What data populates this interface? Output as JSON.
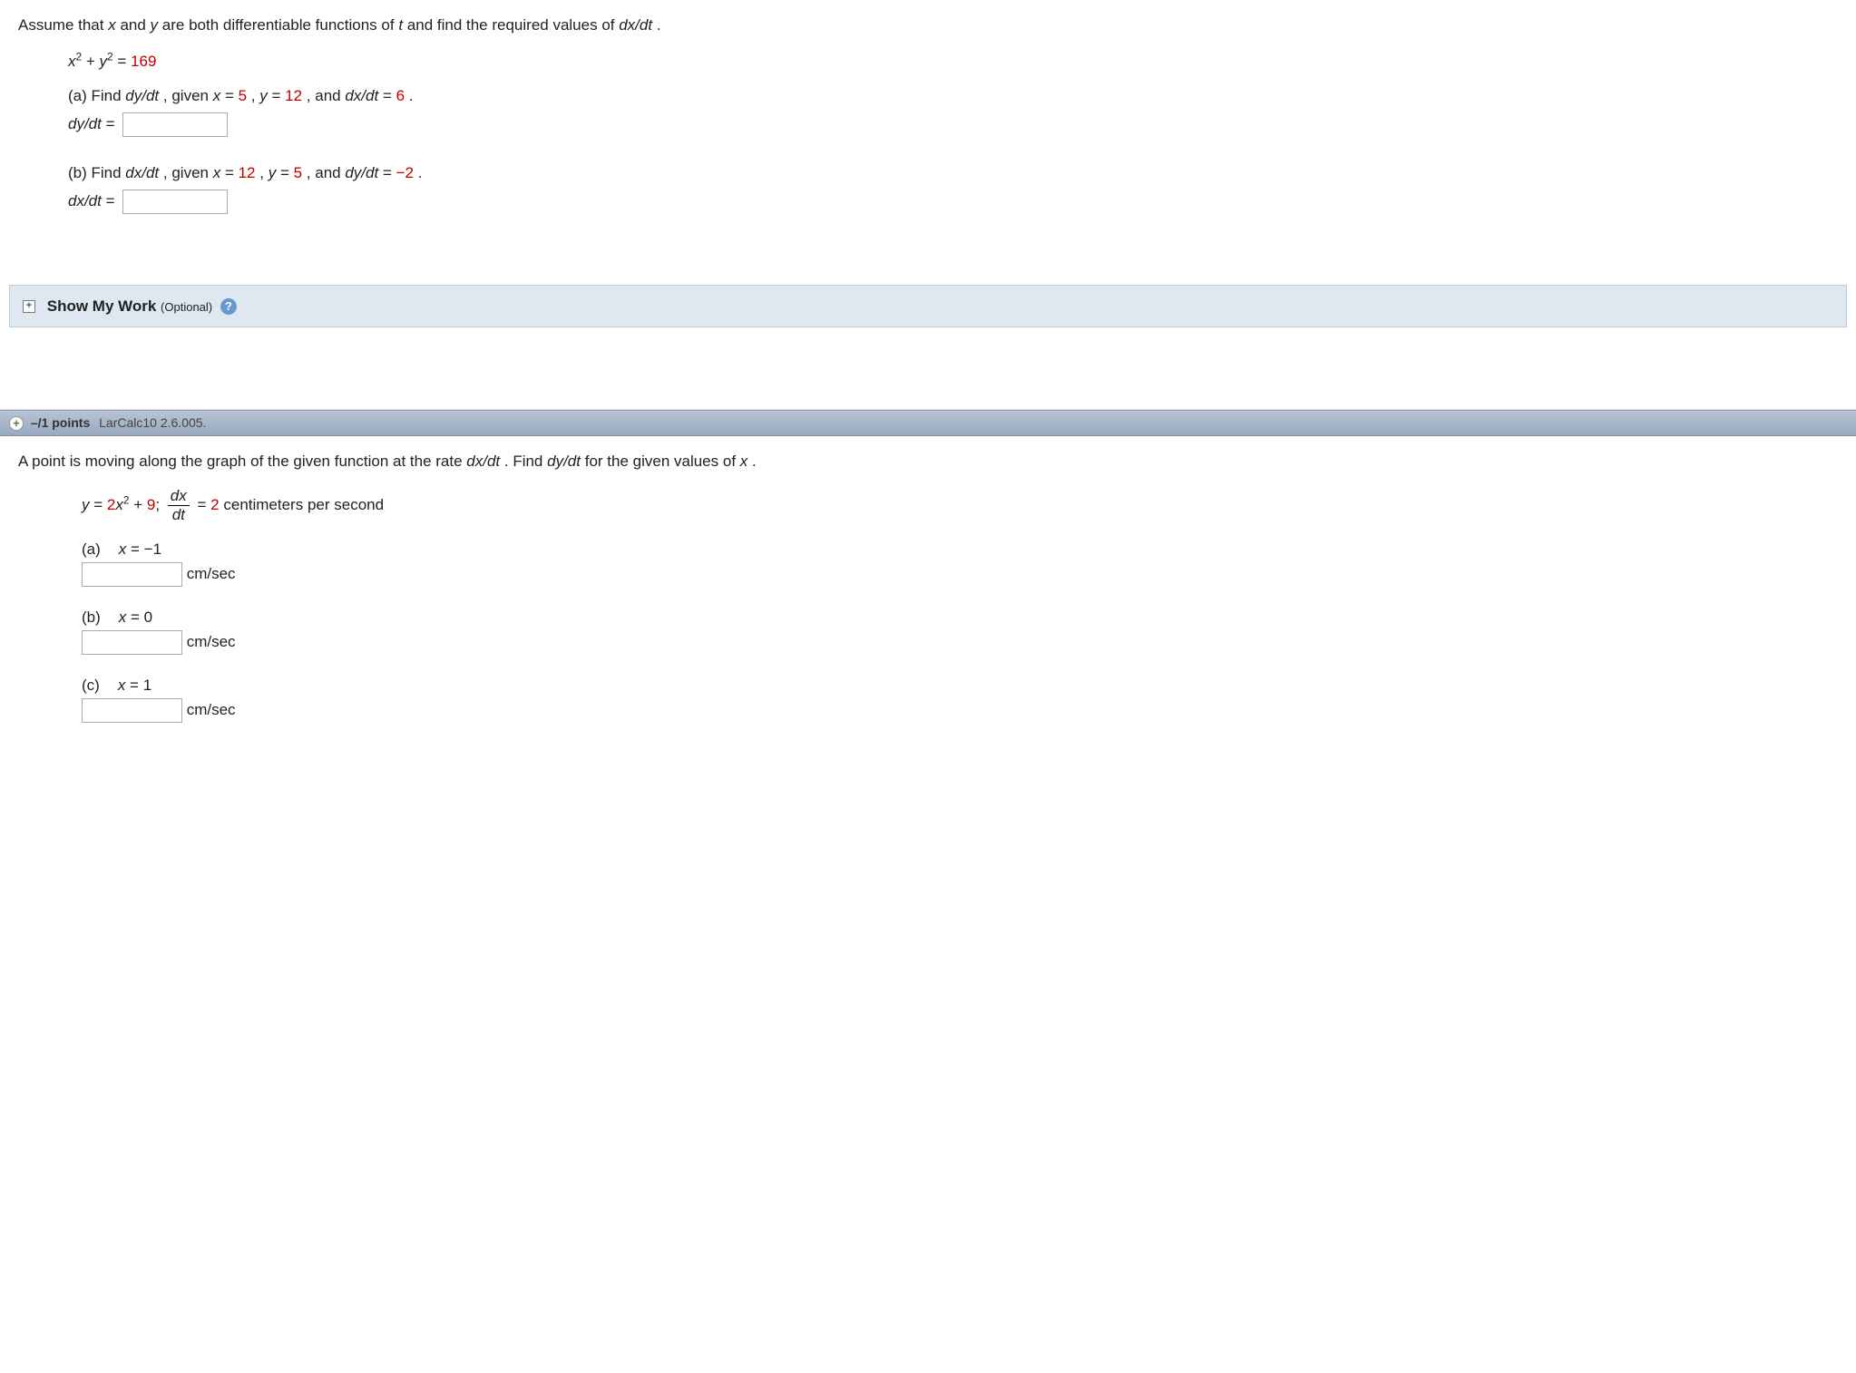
{
  "q1": {
    "intro_a": "Assume that ",
    "intro_b": " and ",
    "intro_c": " are both differentiable functions of ",
    "intro_d": " and find the required values of ",
    "intro_e": ".",
    "var_x": "x",
    "var_y": "y",
    "var_t": "t",
    "dxdt": "dx/dt",
    "dydt": "dy/dt",
    "eq_lhs_a": "x",
    "eq_sup": "2",
    "eq_plus": " + ",
    "eq_lhs_b": "y",
    "eq_eq": " = ",
    "eq_rhs": "169",
    "a_label": "(a) Find ",
    "a_mid1": ", given ",
    "a_x": "x",
    "a_eq": " = ",
    "a_xv": "5",
    "a_c1": ", ",
    "a_y": "y",
    "a_yv": "12",
    "a_c2": ", and ",
    "a_rv": "6",
    "a_period": ".",
    "a_ans_label": "dy/dt",
    "a_ans_eq": " = ",
    "b_label": "(b) Find ",
    "b_xv": "12",
    "b_yv": "5",
    "b_rv": "−2",
    "b_ans_label": "dx/dt"
  },
  "showWork": {
    "expand": "+",
    "title": "Show My Work ",
    "optional": "(Optional)",
    "help": "?"
  },
  "header2": {
    "plus": "+",
    "points": "–/1 points",
    "ref": "LarCalc10 2.6.005."
  },
  "q2": {
    "intro_a": "A point is moving along the graph of the given function at the rate  ",
    "intro_b": ".  Find  ",
    "intro_c": "  for the given values of ",
    "intro_d": ".",
    "dxdt": "dx/dt",
    "dydt": "dy/dt",
    "var_x": "x",
    "eq_y": "y",
    "eq_eq": " = ",
    "eq_coef": "2",
    "eq_x": "x",
    "eq_sup": "2",
    "eq_plus": " + ",
    "eq_const": "9",
    "eq_semi": "; ",
    "frac_num": "dx",
    "frac_den": "dt",
    "eq_eq2": " = ",
    "rate_val": "2",
    "rate_unit": " centimeters per second",
    "parts": [
      {
        "label": "(a)",
        "xval_pre": "x",
        "eq": " = ",
        "xval": "−1",
        "unit": "cm/sec"
      },
      {
        "label": "(b)",
        "xval_pre": "x",
        "eq": " = ",
        "xval": "0",
        "unit": "cm/sec"
      },
      {
        "label": "(c)",
        "xval_pre": "x",
        "eq": " = ",
        "xval": "1",
        "unit": "cm/sec"
      }
    ]
  }
}
